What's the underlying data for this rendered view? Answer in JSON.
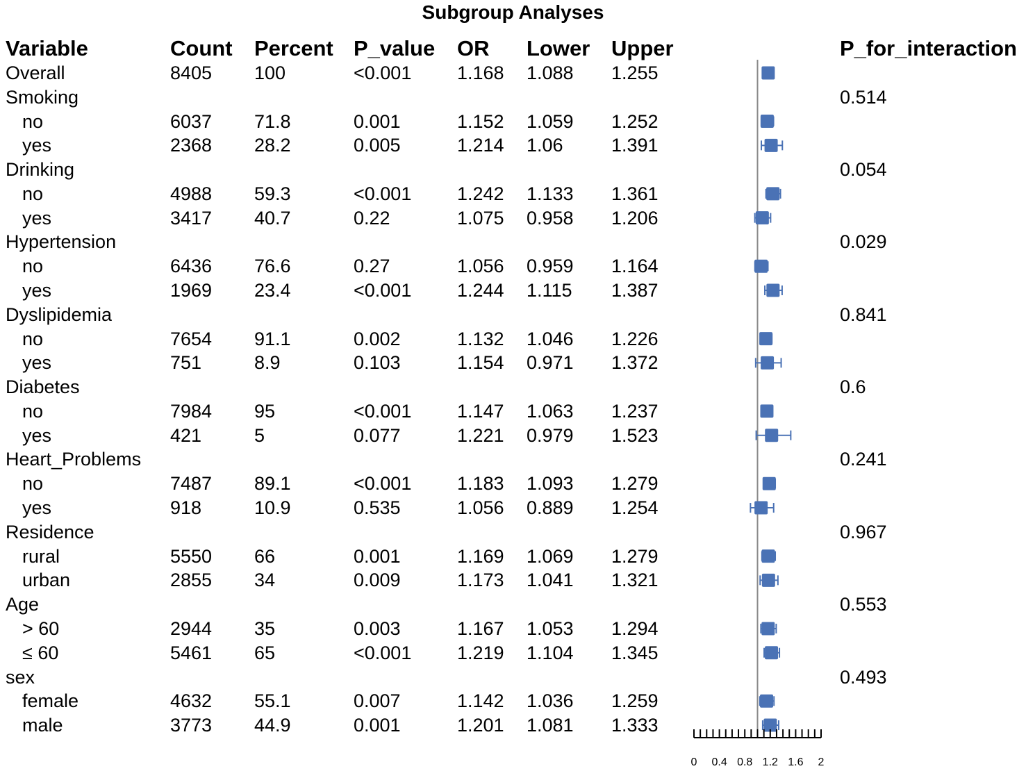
{
  "chart_data": {
    "type": "forest",
    "title": "Subgroup Analyses",
    "headers": {
      "variable": "Variable",
      "count": "Count",
      "percent": "Percent",
      "p_value": "P_value",
      "or": "OR",
      "lower": "Lower",
      "upper": "Upper",
      "p_interaction": "P_for_interaction"
    },
    "reference_line": 1,
    "xlim": [
      0,
      2
    ],
    "ticks": [
      "0",
      "0.4",
      "0.8",
      "1.2",
      "1.6",
      "2"
    ],
    "tick_values": [
      0,
      0.4,
      0.8,
      1.2,
      1.6,
      2
    ],
    "rows": [
      {
        "kind": "overall",
        "label": "Overall",
        "count": "8405",
        "percent": "100",
        "p": "<0.001",
        "or": "1.168",
        "lower": "1.088",
        "upper": "1.255",
        "or_v": 1.168,
        "lo_v": 1.088,
        "up_v": 1.255
      },
      {
        "kind": "group",
        "label": "Smoking",
        "p_int": "0.514"
      },
      {
        "kind": "sub",
        "label": "no",
        "count": "6037",
        "percent": "71.8",
        "p": "0.001",
        "or": "1.152",
        "lower": "1.059",
        "upper": "1.252",
        "or_v": 1.152,
        "lo_v": 1.059,
        "up_v": 1.252
      },
      {
        "kind": "sub",
        "label": "yes",
        "count": "2368",
        "percent": "28.2",
        "p": "0.005",
        "or": "1.214",
        "lower": "1.06",
        "upper": "1.391",
        "or_v": 1.214,
        "lo_v": 1.06,
        "up_v": 1.391
      },
      {
        "kind": "group",
        "label": "Drinking",
        "p_int": "0.054"
      },
      {
        "kind": "sub",
        "label": "no",
        "count": "4988",
        "percent": "59.3",
        "p": "<0.001",
        "or": "1.242",
        "lower": "1.133",
        "upper": "1.361",
        "or_v": 1.242,
        "lo_v": 1.133,
        "up_v": 1.361
      },
      {
        "kind": "sub",
        "label": "yes",
        "count": "3417",
        "percent": "40.7",
        "p": "0.22",
        "or": "1.075",
        "lower": "0.958",
        "upper": "1.206",
        "or_v": 1.075,
        "lo_v": 0.958,
        "up_v": 1.206
      },
      {
        "kind": "group",
        "label": "Hypertension",
        "p_int": "0.029"
      },
      {
        "kind": "sub",
        "label": "no",
        "count": "6436",
        "percent": "76.6",
        "p": "0.27",
        "or": "1.056",
        "lower": "0.959",
        "upper": "1.164",
        "or_v": 1.056,
        "lo_v": 0.959,
        "up_v": 1.164
      },
      {
        "kind": "sub",
        "label": "yes",
        "count": "1969",
        "percent": "23.4",
        "p": "<0.001",
        "or": "1.244",
        "lower": "1.115",
        "upper": "1.387",
        "or_v": 1.244,
        "lo_v": 1.115,
        "up_v": 1.387
      },
      {
        "kind": "group",
        "label": "Dyslipidemia",
        "p_int": "0.841"
      },
      {
        "kind": "sub",
        "label": "no",
        "count": "7654",
        "percent": "91.1",
        "p": "0.002",
        "or": "1.132",
        "lower": "1.046",
        "upper": "1.226",
        "or_v": 1.132,
        "lo_v": 1.046,
        "up_v": 1.226
      },
      {
        "kind": "sub",
        "label": "yes",
        "count": "751",
        "percent": "8.9",
        "p": "0.103",
        "or": "1.154",
        "lower": "0.971",
        "upper": "1.372",
        "or_v": 1.154,
        "lo_v": 0.971,
        "up_v": 1.372
      },
      {
        "kind": "group",
        "label": "Diabetes",
        "p_int": "0.6"
      },
      {
        "kind": "sub",
        "label": "no",
        "count": "7984",
        "percent": "95",
        "p": "<0.001",
        "or": "1.147",
        "lower": "1.063",
        "upper": "1.237",
        "or_v": 1.147,
        "lo_v": 1.063,
        "up_v": 1.237
      },
      {
        "kind": "sub",
        "label": "yes",
        "count": "421",
        "percent": "5",
        "p": "0.077",
        "or": "1.221",
        "lower": "0.979",
        "upper": "1.523",
        "or_v": 1.221,
        "lo_v": 0.979,
        "up_v": 1.523
      },
      {
        "kind": "group",
        "label": "Heart_Problems",
        "p_int": "0.241"
      },
      {
        "kind": "sub",
        "label": "no",
        "count": "7487",
        "percent": "89.1",
        "p": "<0.001",
        "or": "1.183",
        "lower": "1.093",
        "upper": "1.279",
        "or_v": 1.183,
        "lo_v": 1.093,
        "up_v": 1.279
      },
      {
        "kind": "sub",
        "label": "yes",
        "count": "918",
        "percent": "10.9",
        "p": "0.535",
        "or": "1.056",
        "lower": "0.889",
        "upper": "1.254",
        "or_v": 1.056,
        "lo_v": 0.889,
        "up_v": 1.254
      },
      {
        "kind": "group",
        "label": "Residence",
        "p_int": "0.967"
      },
      {
        "kind": "sub",
        "label": "rural",
        "count": "5550",
        "percent": "66",
        "p": "0.001",
        "or": "1.169",
        "lower": "1.069",
        "upper": "1.279",
        "or_v": 1.169,
        "lo_v": 1.069,
        "up_v": 1.279
      },
      {
        "kind": "sub",
        "label": "urban",
        "count": "2855",
        "percent": "34",
        "p": "0.009",
        "or": "1.173",
        "lower": "1.041",
        "upper": "1.321",
        "or_v": 1.173,
        "lo_v": 1.041,
        "up_v": 1.321
      },
      {
        "kind": "group",
        "label": "Age",
        "p_int": "0.553"
      },
      {
        "kind": "sub",
        "label": "> 60",
        "count": "2944",
        "percent": "35",
        "p": "0.003",
        "or": "1.167",
        "lower": "1.053",
        "upper": "1.294",
        "or_v": 1.167,
        "lo_v": 1.053,
        "up_v": 1.294
      },
      {
        "kind": "sub",
        "label": "≤ 60",
        "count": "5461",
        "percent": "65",
        "p": "<0.001",
        "or": "1.219",
        "lower": "1.104",
        "upper": "1.345",
        "or_v": 1.219,
        "lo_v": 1.104,
        "up_v": 1.345
      },
      {
        "kind": "group",
        "label": "sex",
        "p_int": "0.493"
      },
      {
        "kind": "sub",
        "label": "female",
        "count": "4632",
        "percent": "55.1",
        "p": "0.007",
        "or": "1.142",
        "lower": "1.036",
        "upper": "1.259",
        "or_v": 1.142,
        "lo_v": 1.036,
        "up_v": 1.259
      },
      {
        "kind": "sub",
        "label": "male",
        "count": "3773",
        "percent": "44.9",
        "p": "0.001",
        "or": "1.201",
        "lower": "1.081",
        "upper": "1.333",
        "or_v": 1.201,
        "lo_v": 1.081,
        "up_v": 1.333
      }
    ],
    "colors": {
      "marker": "#4a72b5",
      "reference_line": "#8a8a8a",
      "axis": "#000000"
    }
  }
}
